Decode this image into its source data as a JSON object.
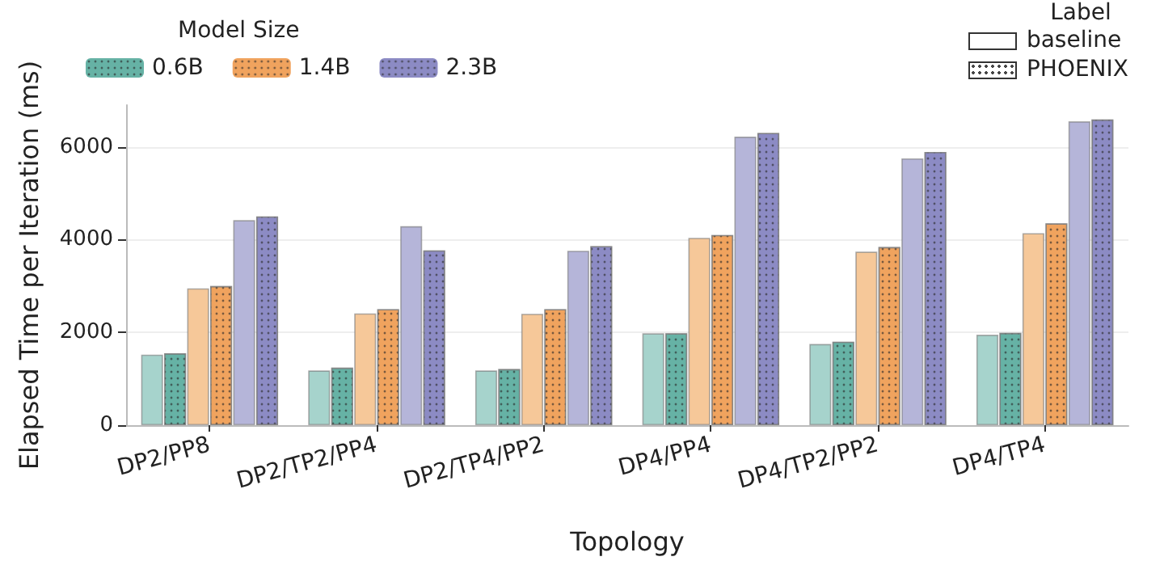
{
  "chart_data": {
    "type": "bar",
    "xlabel": "Topology",
    "ylabel": "Elapsed Time per Iteration (ms)",
    "legend_title": [
      "Model Size",
      "Label"
    ],
    "annotations": [
      "baseline",
      "PHOENIX"
    ],
    "categories": [
      "DP2/PP8",
      "DP2/TP2/PP4",
      "DP2/TP4/PP2",
      "DP4/PP4",
      "DP4/TP2/PP2",
      "DP4/TP4"
    ],
    "series": [
      {
        "color": "#a6d3cc",
        "values": [
          1520,
          1180,
          1180,
          1980,
          1750,
          1950
        ]
      },
      {
        "name": "0.6B",
        "color": "#66b2a5",
        "values": [
          1550,
          1240,
          1210,
          1980,
          1800,
          1990
        ]
      },
      {
        "color": "#f6c899",
        "values": [
          2950,
          2410,
          2400,
          4040,
          3740,
          4140
        ]
      },
      {
        "name": "1.4B",
        "color": "#f0a35e",
        "values": [
          3000,
          2500,
          2500,
          4100,
          3840,
          4350
        ]
      },
      {
        "color": "#b5b5d9",
        "values": [
          4420,
          4290,
          3760,
          6220,
          5750,
          6550
        ]
      },
      {
        "name": "2.3B",
        "color": "#8c8bc4",
        "values": [
          4500,
          3770,
          3860,
          6300,
          5890,
          6590
        ]
      }
    ],
    "ylim": [
      0,
      6900
    ],
    "yticks": [
      0,
      2000,
      4000,
      6000
    ],
    "grid": "y",
    "legend": "top"
  }
}
